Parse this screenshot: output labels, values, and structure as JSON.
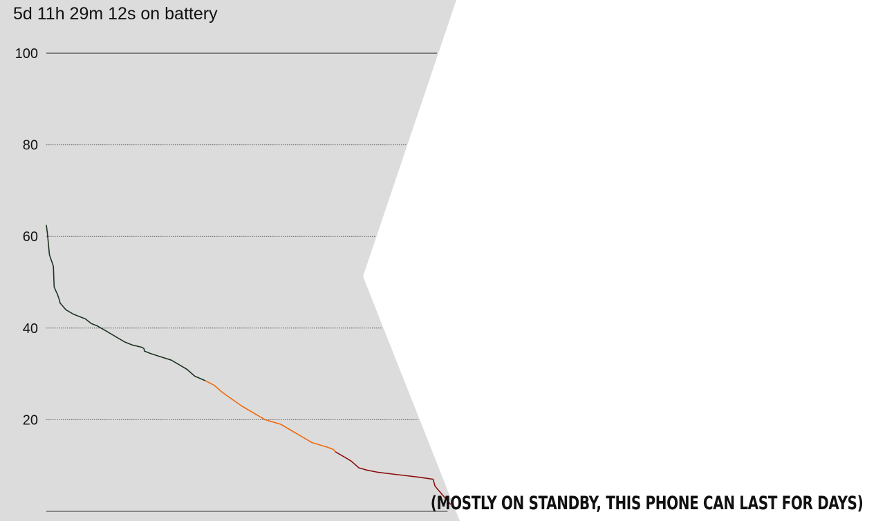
{
  "title": "5d 11h 29m 12s on battery",
  "caption": "(MOSTLY ON STANDBY, THIS PHONE CAN LAST FOR DAYS)",
  "colors": {
    "panel": "#dcdcdc",
    "high": "#1d3320",
    "mid": "#ef6a10",
    "low": "#8b0f0f",
    "gridline": "#555555",
    "axis": "#333333"
  },
  "chart_data": {
    "type": "line",
    "title": "5d 11h 29m 12s on battery",
    "xlabel": "",
    "ylabel": "",
    "ylim": [
      0,
      100
    ],
    "yticks": [
      20,
      40,
      60,
      80,
      100
    ],
    "grid": true,
    "xlim": [
      0,
      100
    ],
    "series": [
      {
        "color_key": "high",
        "x": [
          0,
          0.3,
          0.8,
          1.8,
          2.0,
          2.5,
          2.8,
          3.4,
          3.5,
          4.0,
          5.0,
          7.0,
          10.0,
          11.5,
          13.0,
          15.0,
          17.0,
          18.0,
          20.0,
          22.0,
          24.5,
          25.0,
          25.1,
          26.5,
          29.0,
          32.0,
          34.0,
          36.0,
          38.0,
          40.7
        ],
        "y": [
          62.5,
          60.5,
          56.0,
          53.5,
          49.0,
          48.0,
          47.5,
          46.0,
          45.5,
          45.0,
          44.0,
          43.0,
          42.0,
          41.0,
          40.5,
          39.5,
          38.5,
          38.0,
          37.0,
          36.3,
          35.8,
          35.5,
          35.0,
          34.5,
          33.8,
          33.0,
          32.0,
          31.0,
          29.5,
          28.5
        ]
      },
      {
        "color_key": "mid",
        "x": [
          40.7,
          43.0,
          45.0,
          47.5,
          50.0,
          53.0,
          56.0,
          58.0,
          60.0,
          63.0,
          65.0,
          67.0,
          68.0,
          70.0,
          72.0,
          73.5,
          74.0
        ],
        "y": [
          28.5,
          27.5,
          26.0,
          24.5,
          23.0,
          21.5,
          20.0,
          19.5,
          19.0,
          17.5,
          16.5,
          15.5,
          15.0,
          14.5,
          14.0,
          13.5,
          13.0
        ]
      },
      {
        "color_key": "low",
        "x": [
          74.0,
          76.0,
          78.0,
          80.0,
          82.0,
          85.0,
          90.0,
          95.0,
          99.0,
          99.5,
          100.0,
          101.5,
          103.0,
          103.5
        ],
        "y": [
          13.0,
          12.0,
          11.0,
          9.5,
          9.0,
          8.5,
          8.0,
          7.5,
          7.0,
          5.5,
          5.0,
          3.5,
          2.0,
          1.5
        ]
      }
    ]
  }
}
